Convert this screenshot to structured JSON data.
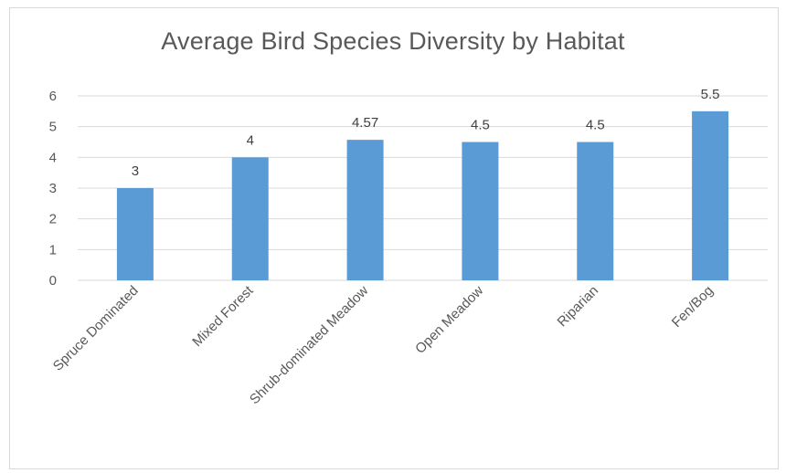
{
  "chart_data": {
    "type": "bar",
    "title": "Average Bird Species Diversity by Habitat",
    "categories": [
      "Spruce Dominated",
      "Mixed Forest",
      "Shrub-dominated Meadow",
      "Open Meadow",
      "Riparian",
      "Fen/Bog"
    ],
    "values": [
      3,
      4,
      4.57,
      4.5,
      4.5,
      5.5
    ],
    "data_labels": [
      "3",
      "4",
      "4.57",
      "4.5",
      "4.5",
      "5.5"
    ],
    "ylim": [
      0,
      6
    ],
    "yticks": [
      0,
      1,
      2,
      3,
      4,
      5,
      6
    ],
    "grid": true,
    "legend": "none",
    "colors": {
      "bar": "#5b9bd5",
      "grid": "#d9d9d9",
      "text": "#595959"
    }
  }
}
